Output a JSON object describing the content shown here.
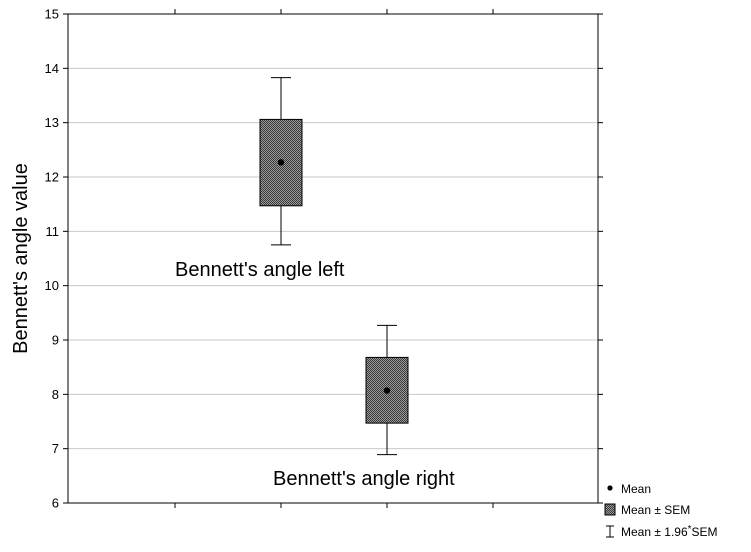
{
  "chart_data": {
    "type": "box",
    "title": "",
    "xlabel": "",
    "ylabel": "Bennett's angle value",
    "ylim": [
      6,
      15
    ],
    "yticks": [
      6,
      7,
      8,
      9,
      10,
      11,
      12,
      13,
      14,
      15
    ],
    "grid": "horizontal",
    "series": [
      {
        "label": "Bennett's angle left",
        "mean": 12.27,
        "sem_low": 11.47,
        "sem_high": 13.06,
        "ci_low": 10.75,
        "ci_high": 13.83
      },
      {
        "label": "Bennett's angle right",
        "mean": 8.07,
        "sem_low": 7.47,
        "sem_high": 8.68,
        "ci_low": 6.89,
        "ci_high": 9.27
      }
    ],
    "legend": {
      "placement": "bottom-right",
      "items": [
        {
          "symbol": "dot",
          "text": "Mean"
        },
        {
          "symbol": "box",
          "text": "Mean ± SEM"
        },
        {
          "symbol": "whisker",
          "text": "Mean ± 1.96",
          "sup": "*",
          "suffix": "SEM"
        }
      ]
    }
  }
}
